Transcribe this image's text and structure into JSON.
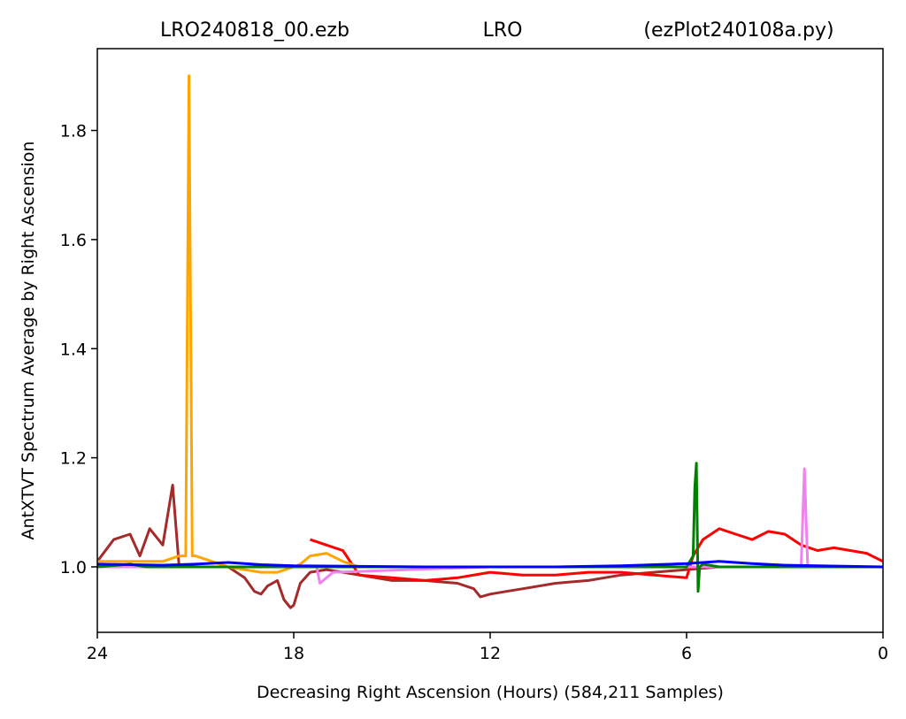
{
  "chart_data": {
    "type": "line",
    "title_parts": {
      "left": "LRO240818_00.ezb",
      "center": "LRO",
      "right": "(ezPlot240108a.py)"
    },
    "xlabel": "Decreasing Right Ascension (Hours) (584,211 Samples)",
    "ylabel": "AntXTVT Spectrum Average by Right Ascension",
    "xlim": [
      24,
      0
    ],
    "ylim": [
      0.88,
      1.95
    ],
    "x_ticks": [
      24,
      18,
      12,
      6,
      0
    ],
    "x_tick_labels": [
      "24",
      "18",
      "12",
      "6",
      "0"
    ],
    "y_ticks": [
      1.0,
      1.2,
      1.4,
      1.6,
      1.8
    ],
    "y_tick_labels": [
      "1.0",
      "1.2",
      "1.4",
      "1.6",
      "1.8"
    ],
    "grid": false,
    "legend": "none",
    "series": [
      {
        "color": "#a52a2a",
        "x": [
          24.0,
          23.5,
          23.0,
          22.7,
          22.4,
          22.0,
          21.7,
          21.5,
          21.0,
          20.5,
          20.0,
          19.5,
          19.2,
          19.0,
          18.8,
          18.5,
          18.3,
          18.1,
          18.0,
          17.8,
          17.5,
          17.0,
          16.0,
          15.0,
          14.0,
          13.0,
          12.5,
          12.3,
          12.0,
          11.5,
          11.0,
          10.0,
          9.0,
          8.0,
          7.0,
          6.0,
          5.0,
          4.0,
          3.0,
          2.0,
          1.0,
          0.0
        ],
        "y": [
          1.01,
          1.05,
          1.06,
          1.02,
          1.07,
          1.04,
          1.15,
          1.0,
          1.0,
          1.0,
          1.0,
          0.98,
          0.955,
          0.95,
          0.965,
          0.975,
          0.94,
          0.925,
          0.93,
          0.97,
          0.99,
          0.995,
          0.985,
          0.975,
          0.975,
          0.97,
          0.96,
          0.945,
          0.95,
          0.955,
          0.96,
          0.97,
          0.975,
          0.985,
          0.99,
          0.995,
          1.0,
          1.0,
          1.0,
          1.0,
          1.0,
          1.0
        ]
      },
      {
        "color": "#ff0000",
        "x": [
          17.5,
          17.0,
          16.5,
          16.0,
          15.0,
          14.0,
          13.0,
          12.0,
          11.0,
          10.0,
          9.0,
          8.0,
          7.0,
          6.0,
          5.8,
          5.5,
          5.0,
          4.5,
          4.0,
          3.5,
          3.0,
          2.5,
          2.0,
          1.5,
          1.0,
          0.5,
          0.0
        ],
        "y": [
          1.05,
          1.04,
          1.03,
          0.985,
          0.98,
          0.975,
          0.98,
          0.99,
          0.985,
          0.985,
          0.99,
          0.99,
          0.985,
          0.98,
          1.02,
          1.05,
          1.07,
          1.06,
          1.05,
          1.065,
          1.06,
          1.04,
          1.03,
          1.035,
          1.03,
          1.025,
          1.01
        ]
      },
      {
        "color": "#ffa500",
        "x": [
          24.0,
          23.0,
          22.0,
          21.5,
          21.3,
          21.2,
          21.1,
          21.0,
          20.5,
          20.0,
          19.5,
          19.0,
          18.5,
          18.0,
          17.8,
          17.5,
          17.0,
          16.5,
          16.0,
          15.0,
          14.0,
          13.0,
          12.0,
          11.0,
          10.0,
          9.0,
          8.0,
          7.0,
          6.0,
          5.0,
          4.0,
          3.0,
          2.0,
          1.0,
          0.0
        ],
        "y": [
          1.01,
          1.01,
          1.01,
          1.02,
          1.02,
          1.9,
          1.02,
          1.02,
          1.01,
          1.0,
          0.995,
          0.99,
          0.99,
          1.0,
          1.005,
          1.02,
          1.025,
          1.01,
          1.0,
          1.0,
          1.0,
          1.0,
          1.0,
          1.0,
          1.0,
          1.0,
          1.0,
          1.0,
          1.0,
          1.0,
          1.0,
          1.0,
          1.0,
          1.0,
          1.0
        ]
      },
      {
        "color": "#ee82ee",
        "x": [
          24.0,
          20.0,
          17.3,
          17.2,
          17.0,
          16.8,
          12.0,
          6.0,
          3.0,
          2.5,
          2.4,
          2.3,
          2.0,
          1.0,
          0.0
        ],
        "y": [
          1.0,
          1.0,
          1.0,
          0.97,
          0.98,
          0.99,
          1.0,
          1.0,
          1.0,
          1.0,
          1.18,
          1.0,
          1.0,
          1.0,
          1.0
        ]
      },
      {
        "color": "#008000",
        "x": [
          24.0,
          23.0,
          22.5,
          22.0,
          21.0,
          18.0,
          12.0,
          7.0,
          6.0,
          5.8,
          5.75,
          5.7,
          5.65,
          5.6,
          5.5,
          5.0,
          4.0,
          3.0,
          0.0
        ],
        "y": [
          1.0,
          1.005,
          1.0,
          1.0,
          1.0,
          1.0,
          1.0,
          1.0,
          1.0,
          1.02,
          1.145,
          1.19,
          0.955,
          1.0,
          1.005,
          1.0,
          1.0,
          1.0,
          1.0
        ]
      },
      {
        "color": "#0000ff",
        "x": [
          24.0,
          22.0,
          21.0,
          20.0,
          19.0,
          18.0,
          16.0,
          14.0,
          12.0,
          10.0,
          8.0,
          6.0,
          5.0,
          4.0,
          3.0,
          2.0,
          1.0,
          0.0
        ],
        "y": [
          1.005,
          1.003,
          1.005,
          1.008,
          1.004,
          1.002,
          1.001,
          1.0,
          1.0,
          1.0,
          1.002,
          1.006,
          1.01,
          1.006,
          1.003,
          1.002,
          1.001,
          1.0
        ]
      }
    ]
  }
}
